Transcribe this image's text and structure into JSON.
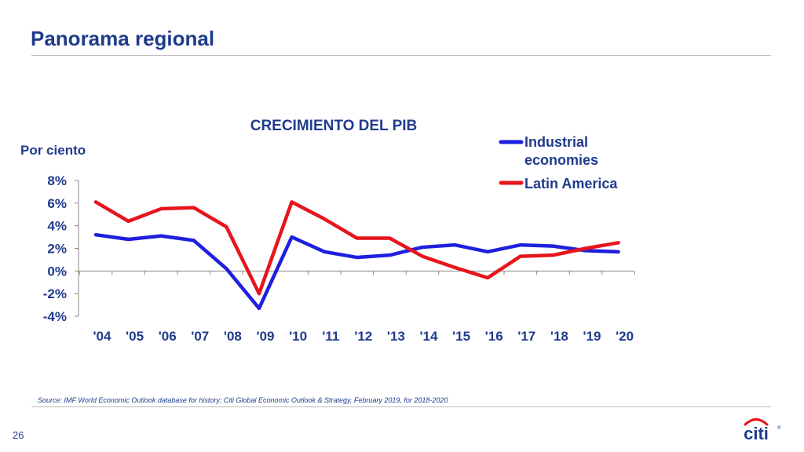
{
  "slide": {
    "title": "Panorama regional",
    "source": "Source: IMF World Economic Outlook database for history; Citi Global Economic Outlook & Strategy, February 2019,  for 2018-2020",
    "page_number": "26",
    "logo_text": "citi"
  },
  "colors": {
    "title": "#1f3b8c",
    "industrial": "#1f1fe0",
    "latam": "#e8141c",
    "axis": "#888888"
  },
  "chart_data": {
    "type": "line",
    "title": "CRECIMIENTO DEL PIB",
    "ylabel": "Por ciento",
    "xlabel": "",
    "categories": [
      "'04",
      "'05",
      "'06",
      "'07",
      "'08",
      "'09",
      "'10",
      "'11",
      "'12",
      "'13",
      "'14",
      "'15",
      "'16",
      "'17",
      "'18",
      "'19",
      "'20"
    ],
    "ylim": [
      -4,
      8
    ],
    "yticks": [
      8,
      6,
      4,
      2,
      0,
      -2,
      -4
    ],
    "ytick_labels": [
      "8%",
      "6%",
      "4%",
      "2%",
      "0%",
      "-2%",
      "-4%"
    ],
    "grid": false,
    "legend_position": "top-right",
    "series": [
      {
        "name": "Industrial economies",
        "color": "#1f1fe0",
        "values": [
          3.2,
          2.8,
          3.1,
          2.7,
          0.2,
          -3.3,
          3.0,
          1.7,
          1.2,
          1.4,
          2.1,
          2.3,
          1.7,
          2.3,
          2.2,
          1.8,
          1.7
        ]
      },
      {
        "name": "Latin America",
        "color": "#e8141c",
        "values": [
          6.1,
          4.4,
          5.5,
          5.6,
          3.9,
          -2.0,
          6.1,
          4.6,
          2.9,
          2.9,
          1.3,
          0.3,
          -0.6,
          1.3,
          1.4,
          2.0,
          2.5
        ]
      }
    ]
  }
}
